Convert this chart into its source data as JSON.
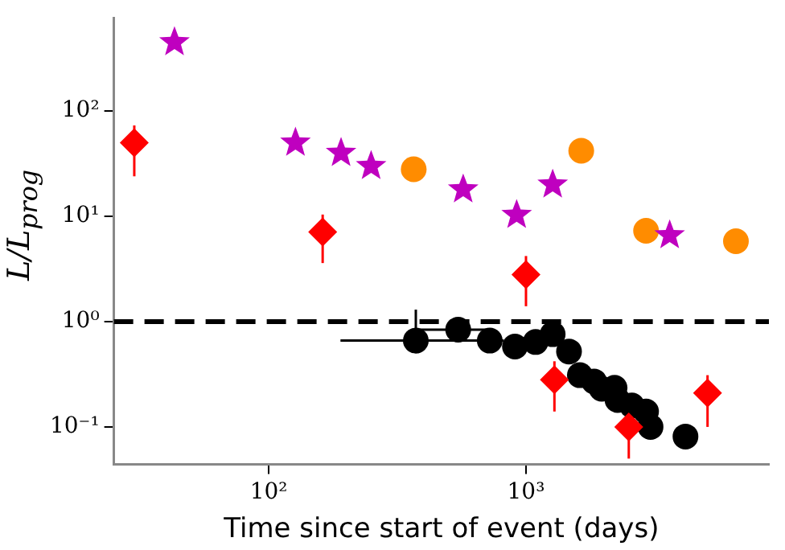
{
  "chart_data": {
    "type": "scatter",
    "xlabel": "Time since start of event (days)",
    "ylabel": "L/L$_{prog}$",
    "log": "xy",
    "grid": false,
    "legend": false,
    "xlim": [
      25,
      8800
    ],
    "ylim": [
      0.044,
      760
    ],
    "xticks": [
      {
        "value": 100,
        "label": "10²"
      },
      {
        "value": 1000,
        "label": "10³"
      }
    ],
    "yticks": [
      {
        "value": 0.1,
        "label": "10⁻¹"
      },
      {
        "value": 1,
        "label": "10⁰"
      },
      {
        "value": 10,
        "label": "10¹"
      },
      {
        "value": 100,
        "label": "10²"
      }
    ],
    "ref_lines": [
      {
        "axis": "y",
        "value": 1,
        "color": "#000000",
        "line_style": "dashed"
      }
    ],
    "series": [
      {
        "color": "#ff0000",
        "marker": "diamond",
        "x": [
          30,
          162,
          1000,
          1290,
          2510,
          5080
        ],
        "values": [
          50,
          7.1,
          2.8,
          0.28,
          0.1,
          0.21
        ],
        "errors": [
          [
            24,
            73
          ],
          [
            3.6,
            10.4
          ],
          [
            1.4,
            4.2
          ],
          [
            0.14,
            0.42
          ],
          [
            0.05,
            0.146
          ],
          [
            0.1,
            0.31
          ]
        ]
      },
      {
        "color": "#bf00bf",
        "marker": "star",
        "x": [
          43,
          127,
          191,
          250,
          570,
          920,
          1270,
          3620
        ],
        "values": [
          450,
          50,
          40,
          30,
          18,
          10.3,
          20,
          6.6
        ]
      },
      {
        "color": "#ff8c00",
        "marker": "circle",
        "x": [
          366,
          1640,
          2930,
          6550
        ],
        "values": [
          28,
          42,
          7.3,
          5.8
        ]
      },
      {
        "color": "#000000",
        "marker": "circle",
        "x": [
          373,
          545,
          723,
          906,
          1090,
          1270,
          1470,
          1620,
          1840,
          1970,
          2210,
          2270,
          2580,
          2930,
          3050,
          4170
        ],
        "values": [
          0.66,
          0.84,
          0.66,
          0.58,
          0.64,
          0.76,
          0.52,
          0.31,
          0.27,
          0.23,
          0.235,
          0.18,
          0.16,
          0.14,
          0.1,
          0.081
        ],
        "errors": [
          [
            0.5,
            1.3
          ],
          null,
          null,
          null,
          null,
          null,
          null,
          null,
          null,
          null,
          null,
          null,
          null,
          null,
          null,
          null
        ],
        "xerrors": [
          [
            190,
            820
          ],
          [
            370,
            730
          ],
          null,
          null,
          null,
          null,
          null,
          null,
          null,
          null,
          null,
          null,
          null,
          null,
          null,
          null
        ]
      }
    ]
  }
}
